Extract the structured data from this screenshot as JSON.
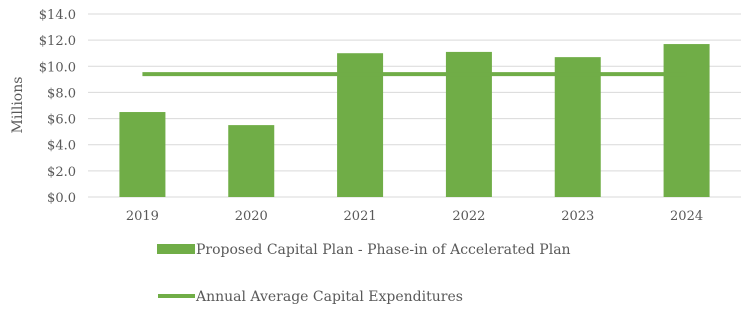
{
  "chart_data": {
    "type": "bar",
    "title": "",
    "xlabel": "",
    "ylabel": "Millions",
    "ylim": [
      0,
      14
    ],
    "yticks": [
      0,
      2,
      4,
      6,
      8,
      10,
      12,
      14
    ],
    "ytick_labels": [
      "$0.0",
      "$2.0",
      "$4.0",
      "$6.0",
      "$8.0",
      "$10.0",
      "$12.0",
      "$14.0"
    ],
    "categories": [
      "2019",
      "2020",
      "2021",
      "2022",
      "2023",
      "2024"
    ],
    "grid": true,
    "legend_position": "bottom",
    "series": [
      {
        "name": "Proposed Capital Plan - Phase-in of Accelerated Plan",
        "type": "bar",
        "color": "#70ad47",
        "values": [
          6.5,
          5.5,
          11.0,
          11.1,
          10.7,
          11.7
        ]
      },
      {
        "name": "Annual Average Capital Expenditures",
        "type": "line",
        "color": "#70ad47",
        "values": [
          9.4,
          9.4,
          9.4,
          9.4,
          9.4,
          9.4
        ]
      }
    ]
  }
}
